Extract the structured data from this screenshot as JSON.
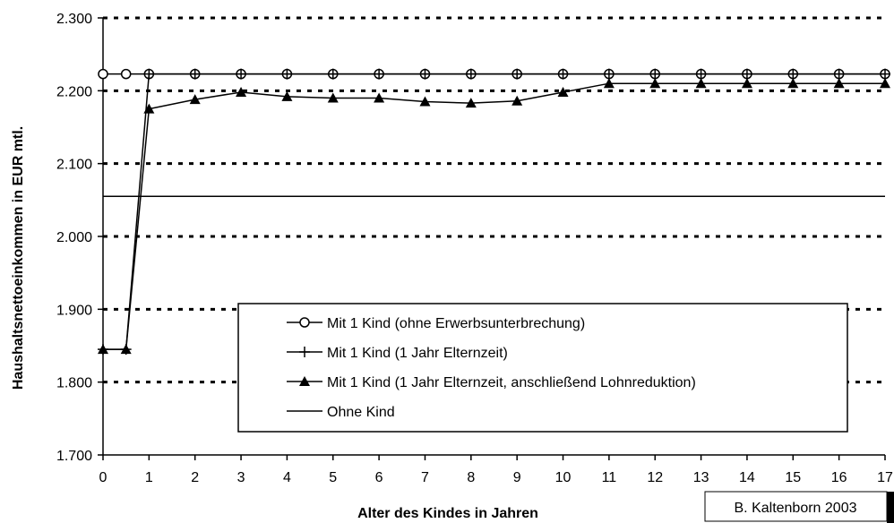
{
  "chart_data": {
    "type": "line",
    "xlabel": "Alter des Kindes in Jahren",
    "ylabel": "Haushaltsnettoeinkommen in EUR mtl.",
    "ylim": [
      1700,
      2300
    ],
    "xlim": [
      0,
      17
    ],
    "yticks": [
      1700,
      1800,
      1900,
      2000,
      2100,
      2200,
      2300
    ],
    "ytick_labels": [
      "1.700",
      "1.800",
      "1.900",
      "2.000",
      "2.100",
      "2.200",
      "2.300"
    ],
    "xticks": [
      0,
      1,
      2,
      3,
      4,
      5,
      6,
      7,
      8,
      9,
      10,
      11,
      12,
      13,
      14,
      15,
      16,
      17
    ],
    "xtick_labels": [
      "0",
      "1",
      "2",
      "3",
      "4",
      "5",
      "6",
      "7",
      "8",
      "9",
      "10",
      "11",
      "12",
      "13",
      "14",
      "15",
      "16",
      "17"
    ],
    "grid": "horizontal dotted",
    "legend_position": "center-right",
    "series": [
      {
        "name": "Mit 1 Kind (ohne Erwerbsunterbrechung)",
        "marker": "circle",
        "x": [
          0,
          0.5,
          1,
          2,
          3,
          4,
          5,
          6,
          7,
          8,
          9,
          10,
          11,
          12,
          13,
          14,
          15,
          16,
          17
        ],
        "y": [
          2223,
          2223,
          2223,
          2223,
          2223,
          2223,
          2223,
          2223,
          2223,
          2223,
          2223,
          2223,
          2223,
          2223,
          2223,
          2223,
          2223,
          2223,
          2223
        ]
      },
      {
        "name": "Mit 1 Kind (1 Jahr Elternzeit)",
        "marker": "plus",
        "x": [
          0,
          0.5,
          1,
          2,
          3,
          4,
          5,
          6,
          7,
          8,
          9,
          10,
          11,
          12,
          13,
          14,
          15,
          16,
          17
        ],
        "y": [
          1845,
          1845,
          2223,
          2223,
          2223,
          2223,
          2223,
          2223,
          2223,
          2223,
          2223,
          2223,
          2223,
          2223,
          2223,
          2223,
          2223,
          2223,
          2223
        ]
      },
      {
        "name": "Mit 1 Kind (1 Jahr Elternzeit, anschließend Lohnreduktion)",
        "marker": "triangle",
        "x": [
          0,
          0.5,
          1,
          2,
          3,
          4,
          5,
          6,
          7,
          8,
          9,
          10,
          11,
          12,
          13,
          14,
          15,
          16,
          17
        ],
        "y": [
          1845,
          1845,
          2175,
          2188,
          2198,
          2192,
          2190,
          2190,
          2185,
          2183,
          2186,
          2198,
          2210,
          2210,
          2210,
          2210,
          2210,
          2210,
          2210
        ]
      },
      {
        "name": "Ohne Kind",
        "marker": "none",
        "x": [
          0,
          17
        ],
        "y": [
          2055,
          2055
        ]
      }
    ]
  },
  "credit": "B. Kaltenborn 2003"
}
